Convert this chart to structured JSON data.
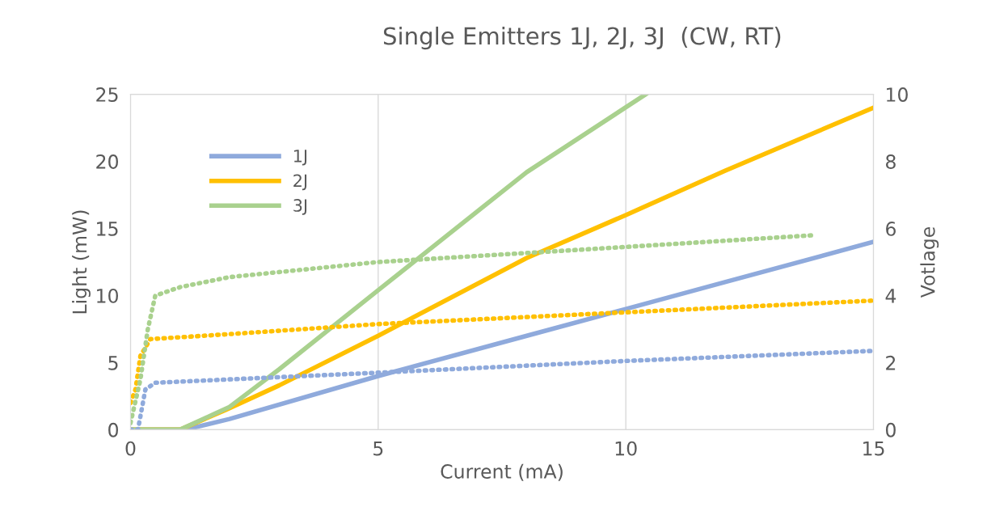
{
  "chart_data": {
    "type": "line",
    "title": "Single Emitters 1J, 2J, 3J  (CW, RT)",
    "xlabel": "Current (mA)",
    "ylabel": "Light (mW)",
    "y2label": "Votlage",
    "xlim": [
      0,
      15
    ],
    "xticks": [
      0,
      5,
      10,
      15
    ],
    "ylim": [
      0,
      25
    ],
    "yticks": [
      0,
      5,
      10,
      15,
      20,
      25
    ],
    "y2lim": [
      0,
      10
    ],
    "y2ticks": [
      0,
      2,
      4,
      6,
      8,
      10
    ],
    "grid": "x",
    "legend": "top left",
    "marker": "none",
    "series": [
      {
        "name": "1J",
        "color": "#8faadc",
        "line_style": "solid",
        "x": [
          0,
          1.1,
          2,
          5,
          8,
          10,
          12,
          15
        ],
        "values": [
          0,
          0,
          0.8,
          4,
          7,
          9,
          11,
          14
        ]
      },
      {
        "name": "2J",
        "color": "#ffc000",
        "line_style": "solid",
        "x": [
          0,
          1,
          2,
          3,
          5,
          8,
          10,
          12,
          15
        ],
        "values": [
          0,
          0,
          1.6,
          3.3,
          7,
          12.8,
          16,
          19.3,
          24
        ]
      },
      {
        "name": "3J",
        "color": "#a9d18e",
        "line_style": "solid",
        "x": [
          0,
          1,
          2,
          3,
          5,
          8,
          10.4
        ],
        "values": [
          0,
          0,
          1.7,
          4.5,
          10.4,
          19.2,
          25
        ]
      },
      {
        "color": "#8faadc",
        "line_style": "dotted",
        "axis": "y2",
        "x": [
          0,
          0.15,
          0.3,
          0.5,
          2,
          5,
          10,
          15
        ],
        "values": [
          0,
          0,
          1.2,
          1.4,
          1.5,
          1.7,
          2.05,
          2.35
        ]
      },
      {
        "color": "#ffc000",
        "line_style": "dotted",
        "axis": "y2",
        "x": [
          0,
          0.1,
          0.2,
          0.4,
          2,
          5,
          10,
          15
        ],
        "values": [
          0.8,
          1.2,
          2.2,
          2.7,
          2.85,
          3.15,
          3.5,
          3.85
        ]
      },
      {
        "color": "#a9d18e",
        "line_style": "dotted",
        "axis": "y2",
        "x": [
          0,
          0.2,
          0.35,
          0.5,
          1,
          2,
          5,
          10,
          13.8
        ],
        "values": [
          0.2,
          1.5,
          3,
          4,
          4.25,
          4.55,
          5,
          5.45,
          5.8
        ]
      }
    ]
  }
}
